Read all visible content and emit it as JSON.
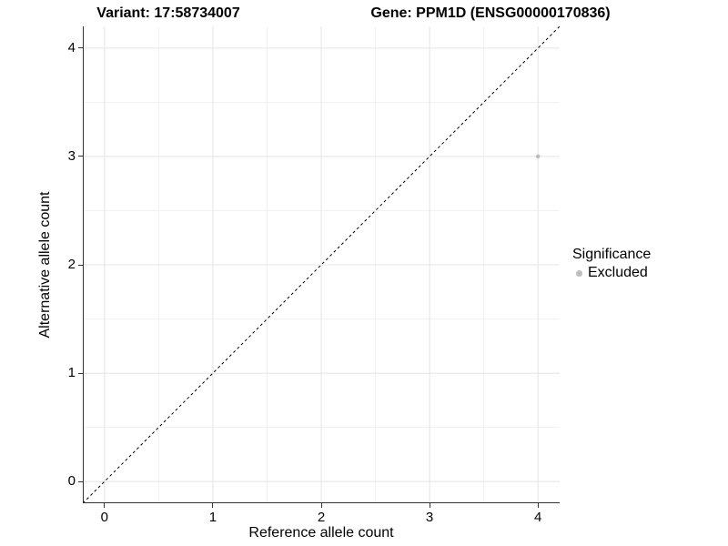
{
  "colors": {
    "background": "#ffffff",
    "text": "#000000",
    "grid_major": "#e4e4e4",
    "grid_minor": "#f1f1f1",
    "axis_line": "#333333",
    "tick_mark": "#333333",
    "abline": "#000000",
    "point_excluded": "#bebebe"
  },
  "chart_data": {
    "type": "scatter",
    "title_left": "Variant: 17:58734007",
    "title_right": "Gene: PPM1D (ENSG00000170836)",
    "xlabel": "Reference allele count",
    "ylabel": "Alternative allele count",
    "xlim": [
      -0.2,
      4.2
    ],
    "ylim": [
      -0.2,
      4.2
    ],
    "xticks": [
      0,
      1,
      2,
      3,
      4
    ],
    "yticks": [
      0,
      1,
      2,
      3,
      4
    ],
    "xminor": [
      0.5,
      1.5,
      2.5,
      3.5
    ],
    "yminor": [
      0.5,
      1.5,
      2.5,
      3.5
    ],
    "grid": "major-minor",
    "abline": {
      "slope": 1,
      "intercept": 0,
      "style": "dashed"
    },
    "series": [
      {
        "name": "Excluded",
        "color": "#bebebe",
        "points": [
          {
            "x": 4,
            "y": 3
          }
        ]
      }
    ],
    "legend": {
      "title": "Significance",
      "position": "right",
      "items": [
        {
          "label": "Excluded",
          "color": "#bebebe"
        }
      ]
    }
  }
}
